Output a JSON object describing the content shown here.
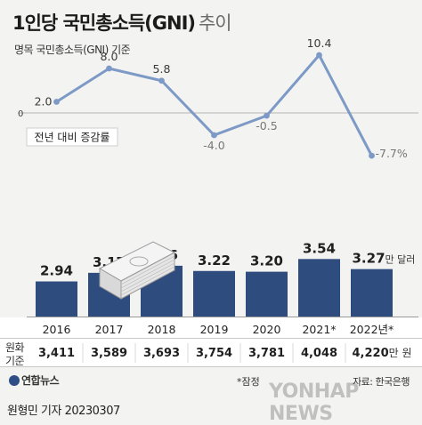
{
  "title": "1인당 국민총소득(GNI)",
  "title_suffix": "추이",
  "subtitle": "명목 국민총소득(GNI) 기준",
  "growth_label": "전년 대비 증감률",
  "currency_label": [
    "원화",
    "기준"
  ],
  "note": "*잠정",
  "logo": "연합뉴스",
  "source": "자료: 한국은행",
  "byline": "원형민 기자  20230307",
  "watermark": "YONHAP NEWS",
  "colors": {
    "bar": "#2f4c7e",
    "line": "#7d9ac6",
    "label_blue": "#2f4c7e",
    "label_grey": "#777777"
  },
  "chart_data": [
    {
      "type": "line",
      "title": "전년 대비 증감률",
      "x": [
        "2016",
        "2017",
        "2018",
        "2019",
        "2020",
        "2021*",
        "2022년*"
      ],
      "y": [
        2.0,
        8.0,
        5.8,
        -4.0,
        -0.5,
        10.4,
        -7.7
      ],
      "data_labels": [
        "2.0",
        "8.0",
        "5.8",
        "-4.0",
        "-0.5",
        "10.4",
        "-7.7%"
      ],
      "zero_label": "0"
    },
    {
      "type": "bar",
      "categories": [
        "2016",
        "2017",
        "2018",
        "2019",
        "2020",
        "2021*",
        "2022년*"
      ],
      "values": [
        2.94,
        3.17,
        3.36,
        3.22,
        3.2,
        3.54,
        3.27
      ],
      "data_labels": [
        "2.94",
        "3.17",
        "3.36",
        "3.22",
        "3.20",
        "3.54",
        "3.27"
      ],
      "unit": "만 달러"
    },
    {
      "type": "table",
      "row_label": "원화 기준",
      "values": [
        "3,411",
        "3,589",
        "3,693",
        "3,754",
        "3,781",
        "4,048",
        "4,220"
      ],
      "unit": "만 원"
    }
  ]
}
